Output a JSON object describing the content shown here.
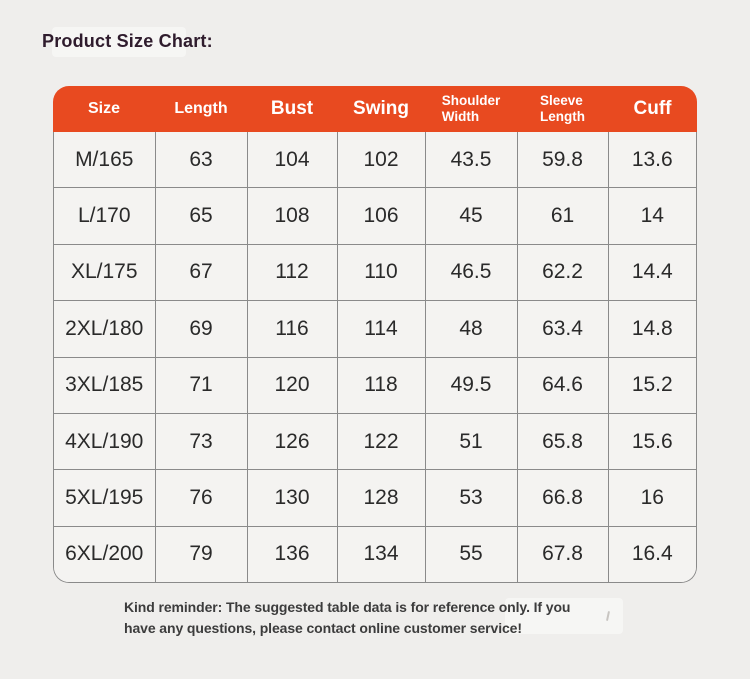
{
  "page": {
    "title": "Product Size Chart:",
    "background_color": "#efeeec"
  },
  "table": {
    "header_bg_color": "#e84a20",
    "header_text_color": "#ffffff",
    "grid_border_color": "#8a8a8a",
    "cell_bg_color": "#f4f3f1",
    "columns": [
      {
        "label": "Size",
        "size": "md"
      },
      {
        "label": "Length",
        "size": "md"
      },
      {
        "label": "Bust",
        "size": "lg"
      },
      {
        "label": "Swing",
        "size": "lg"
      },
      {
        "label": "Shoulder\nWidth",
        "size": "sm"
      },
      {
        "label": "Sleeve\nLength",
        "size": "sm"
      },
      {
        "label": "Cuff",
        "size": "lg"
      }
    ],
    "rows": [
      [
        "M/165",
        "63",
        "104",
        "102",
        "43.5",
        "59.8",
        "13.6"
      ],
      [
        "L/170",
        "65",
        "108",
        "106",
        "45",
        "61",
        "14"
      ],
      [
        "XL/175",
        "67",
        "112",
        "110",
        "46.5",
        "62.2",
        "14.4"
      ],
      [
        "2XL/180",
        "69",
        "116",
        "114",
        "48",
        "63.4",
        "14.8"
      ],
      [
        "3XL/185",
        "71",
        "120",
        "118",
        "49.5",
        "64.6",
        "15.2"
      ],
      [
        "4XL/190",
        "73",
        "126",
        "122",
        "51",
        "65.8",
        "15.6"
      ],
      [
        "5XL/195",
        "76",
        "130",
        "128",
        "53",
        "66.8",
        "16"
      ],
      [
        "6XL/200",
        "79",
        "136",
        "134",
        "55",
        "67.8",
        "16.4"
      ]
    ]
  },
  "footer": {
    "reminder_line1": "Kind reminder: The suggested table data is for reference only. If you",
    "reminder_line2": "have any questions, please contact online customer service!"
  },
  "chart_data": {
    "type": "table",
    "title": "Product Size Chart",
    "categories": [
      "M/165",
      "L/170",
      "XL/175",
      "2XL/180",
      "3XL/185",
      "4XL/190",
      "5XL/195",
      "6XL/200"
    ],
    "series": [
      {
        "name": "Length",
        "values": [
          63,
          65,
          67,
          69,
          71,
          73,
          76,
          79
        ]
      },
      {
        "name": "Bust",
        "values": [
          104,
          108,
          112,
          116,
          120,
          126,
          130,
          136
        ]
      },
      {
        "name": "Swing",
        "values": [
          102,
          106,
          110,
          114,
          118,
          122,
          128,
          134
        ]
      },
      {
        "name": "Shoulder Width",
        "values": [
          43.5,
          45,
          46.5,
          48,
          49.5,
          51,
          53,
          55
        ]
      },
      {
        "name": "Sleeve Length",
        "values": [
          59.8,
          61,
          62.2,
          63.4,
          64.6,
          65.8,
          66.8,
          67.8
        ]
      },
      {
        "name": "Cuff",
        "values": [
          13.6,
          14,
          14.4,
          14.8,
          15.2,
          15.6,
          16,
          16.4
        ]
      }
    ]
  }
}
